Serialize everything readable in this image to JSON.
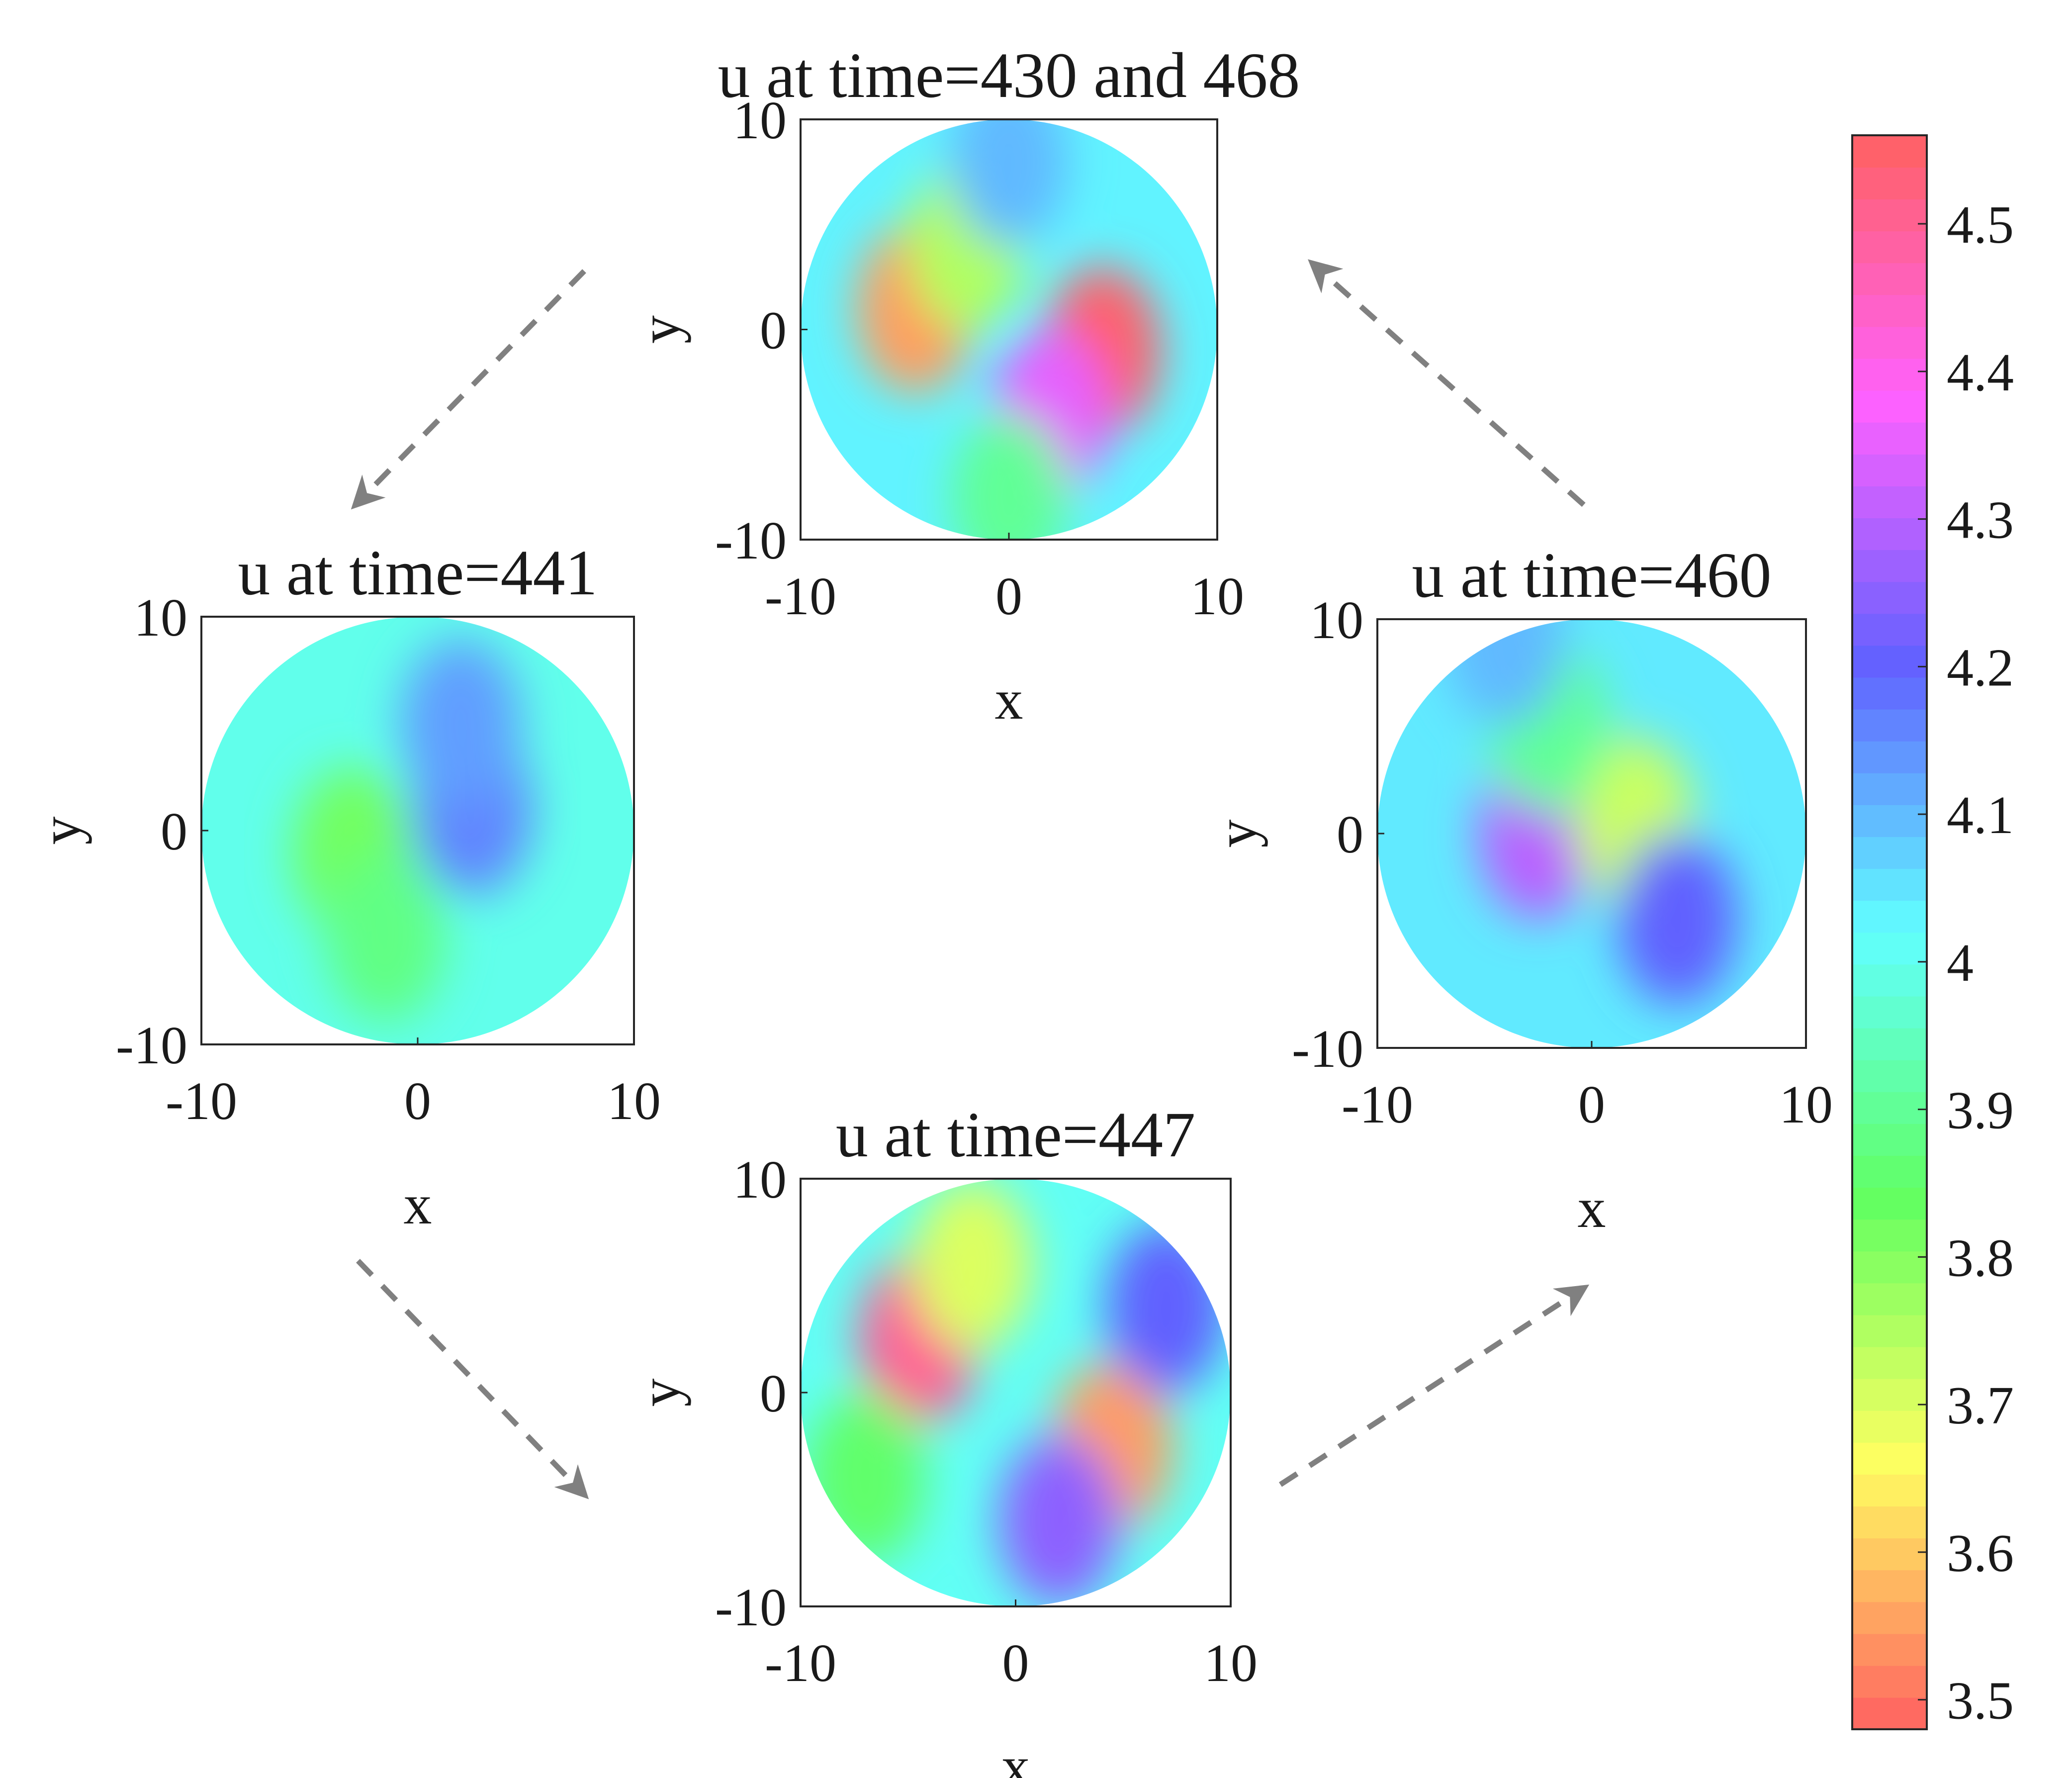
{
  "chart_data": [
    {
      "type": "heatmap",
      "title": "u at time=430 and 468",
      "xlabel": "x",
      "ylabel": "y",
      "xlim": [
        -10,
        10
      ],
      "ylim": [
        -10,
        10
      ],
      "xticks": [
        "-10",
        "0",
        "10"
      ],
      "yticks": [
        "-10",
        "0",
        "10"
      ],
      "domain_shape": "disk of radius 10",
      "features": [
        {
          "x": -4.5,
          "y": 1.0,
          "u": 3.55
        },
        {
          "x": 4.5,
          "y": -1.0,
          "u": 4.55
        },
        {
          "x": -2.0,
          "y": 4.0,
          "u": 3.75
        },
        {
          "x": 2.0,
          "y": -4.0,
          "u": 4.35
        },
        {
          "x": 0.0,
          "y": 8.0,
          "u": 4.1
        },
        {
          "x": 0.0,
          "y": -8.0,
          "u": 3.9
        }
      ]
    },
    {
      "type": "heatmap",
      "title": "u at time=441",
      "xlabel": "x",
      "ylabel": "y",
      "xlim": [
        -10,
        10
      ],
      "ylim": [
        -10,
        10
      ],
      "xticks": [
        "-10",
        "0",
        "10"
      ],
      "yticks": [
        "-10",
        "0",
        "10"
      ],
      "domain_shape": "disk of radius 10",
      "features": [
        {
          "x": -3.0,
          "y": -1.0,
          "u": 3.82
        },
        {
          "x": 2.5,
          "y": 1.0,
          "u": 4.16
        },
        {
          "x": 2.0,
          "y": 5.0,
          "u": 4.13
        },
        {
          "x": -1.5,
          "y": -5.0,
          "u": 3.88
        }
      ]
    },
    {
      "type": "heatmap",
      "title": "u at time=447",
      "xlabel": "x",
      "ylabel": "y",
      "xlim": [
        -10,
        10
      ],
      "ylim": [
        -10,
        10
      ],
      "xticks": [
        "-10",
        "0",
        "10"
      ],
      "yticks": [
        "-10",
        "0",
        "10"
      ],
      "domain_shape": "disk of radius 10",
      "features": [
        {
          "x": -4.5,
          "y": 2.5,
          "u": 4.5
        },
        {
          "x": 4.5,
          "y": -2.5,
          "u": 3.55
        },
        {
          "x": -2.0,
          "y": 6.0,
          "u": 3.7
        },
        {
          "x": 2.0,
          "y": -6.0,
          "u": 4.25
        },
        {
          "x": -7.0,
          "y": -4.0,
          "u": 3.85
        },
        {
          "x": 7.0,
          "y": 4.0,
          "u": 4.2
        }
      ]
    },
    {
      "type": "heatmap",
      "title": "u at time=460",
      "xlabel": "x",
      "ylabel": "y",
      "xlim": [
        -10,
        10
      ],
      "ylim": [
        -10,
        10
      ],
      "xticks": [
        "-10",
        "0",
        "10"
      ],
      "yticks": [
        "-10",
        "0",
        "10"
      ],
      "domain_shape": "disk of radius 10",
      "features": [
        {
          "x": -2.5,
          "y": 0.0,
          "u": 4.3
        },
        {
          "x": 2.0,
          "y": 0.5,
          "u": 3.72
        },
        {
          "x": 4.0,
          "y": -4.0,
          "u": 4.2
        },
        {
          "x": -2.0,
          "y": 5.0,
          "u": 3.9
        },
        {
          "x": -4.0,
          "y": 9.0,
          "u": 4.1
        }
      ]
    },
    {
      "type": "colorbar",
      "range": [
        3.48,
        4.56
      ],
      "ticks": [
        "3.5",
        "3.6",
        "3.7",
        "3.8",
        "3.9",
        "4",
        "4.1",
        "4.2",
        "4.3",
        "4.4",
        "4.5"
      ],
      "tick_values": [
        3.5,
        3.6,
        3.7,
        3.8,
        3.9,
        4.0,
        4.1,
        4.2,
        4.3,
        4.4,
        4.5
      ],
      "colormap": "hsv, semi-transparent (red at 3.48, yellow, green, cyan, blue, magenta, red at 4.56)",
      "levels": 50
    }
  ],
  "transitions": [
    {
      "from": "u at time=430 and 468",
      "to": "u at time=441"
    },
    {
      "from": "u at time=441",
      "to": "u at time=447"
    },
    {
      "from": "u at time=447",
      "to": "u at time=460"
    },
    {
      "from": "u at time=460",
      "to": "u at time=430 and 468"
    }
  ],
  "colors": {
    "arrow": "#808080",
    "axes": "#262626",
    "background": "#ffffff"
  }
}
